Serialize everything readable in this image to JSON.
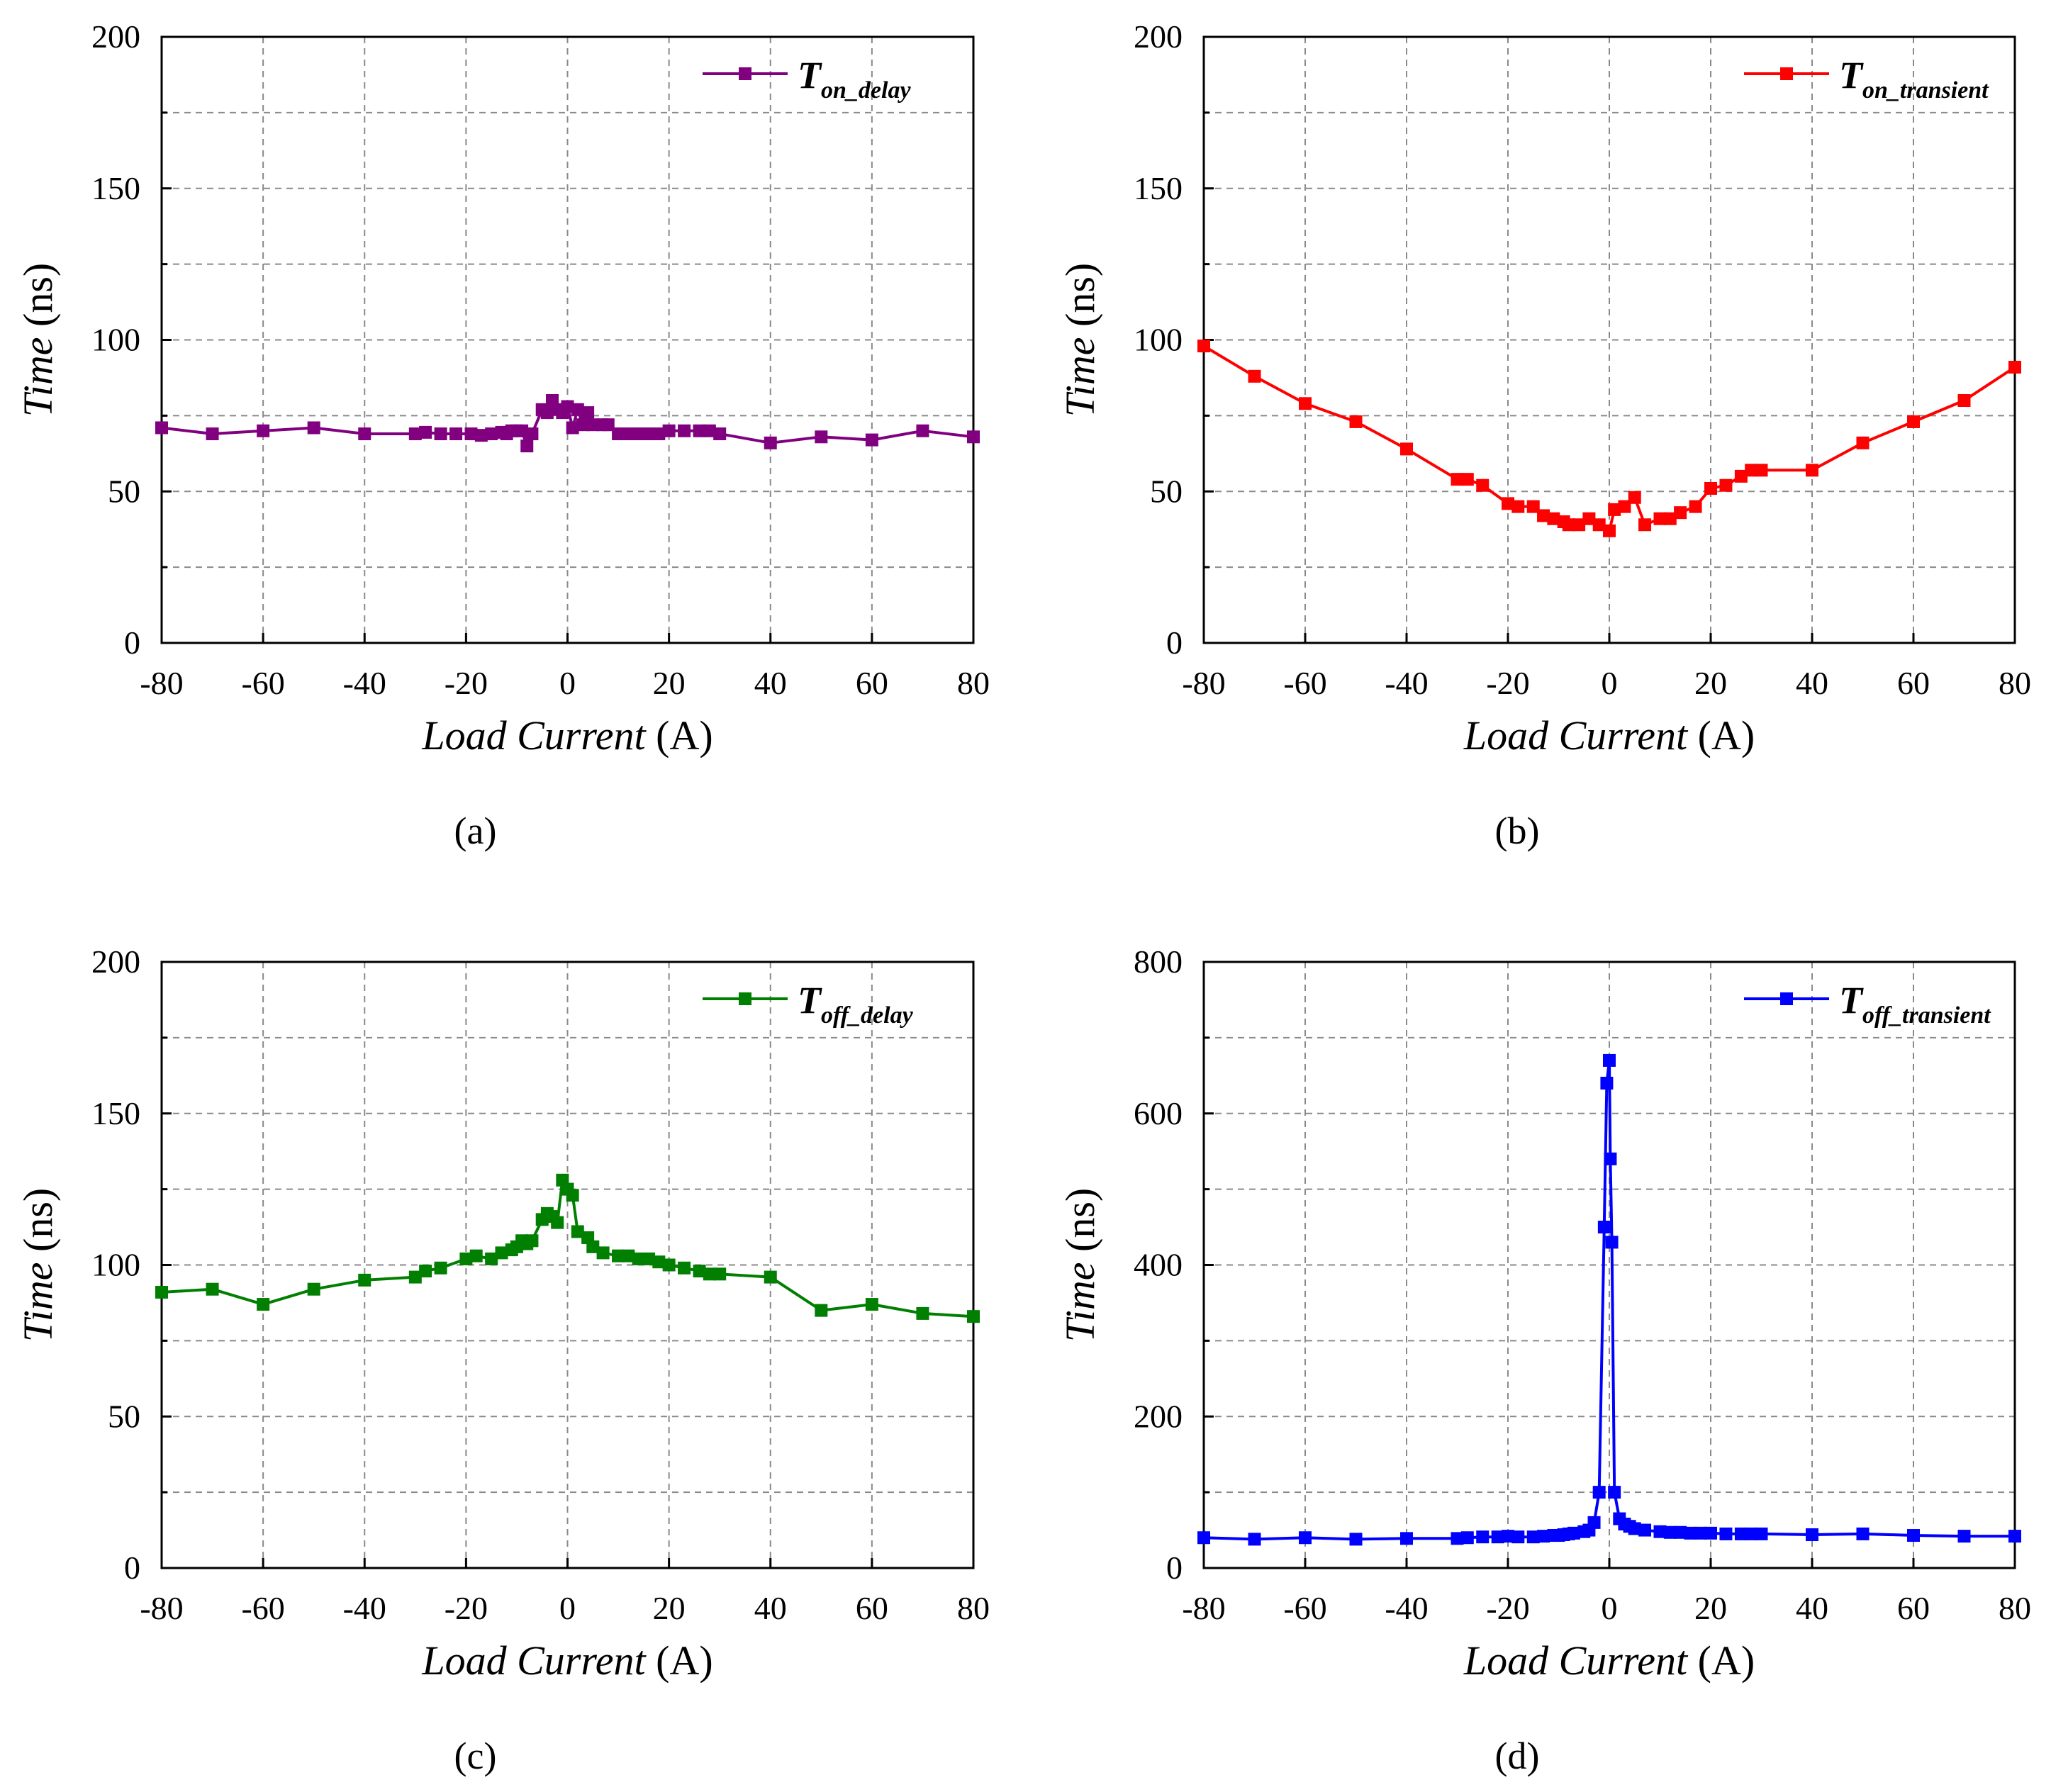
{
  "chart_data": [
    {
      "id": "a",
      "type": "line",
      "panel_label": "(a)",
      "legend": {
        "main": "T",
        "sub": "on_delay"
      },
      "color": "#800080",
      "xlabel": {
        "italic": "Load Current",
        "unit": " (A)"
      },
      "ylabel": {
        "italic": "Time",
        "unit": " (ns)"
      },
      "xlim": [
        -80,
        80
      ],
      "ylim": [
        0,
        200
      ],
      "xticks": [
        -80,
        -60,
        -40,
        -20,
        0,
        20,
        40,
        60,
        80
      ],
      "yticks": [
        0,
        50,
        100,
        150,
        200
      ],
      "legend_position": "top-right",
      "grid": true,
      "series": [
        {
          "name": "T_on_delay",
          "x": [
            -80,
            -70,
            -60,
            -50,
            -40,
            -30,
            -28,
            -25,
            -22,
            -19,
            -17,
            -15,
            -13,
            -12,
            -11,
            -10,
            -9,
            -8,
            -7,
            -5,
            -4,
            -3,
            -2,
            -1,
            0,
            1,
            2,
            3,
            4,
            5,
            7,
            8,
            10,
            12,
            14,
            16,
            18,
            20,
            23,
            26,
            28,
            30,
            40,
            50,
            60,
            70,
            80
          ],
          "y": [
            71,
            69,
            70,
            71,
            69,
            69,
            69.5,
            69,
            69,
            69,
            68.5,
            69,
            69.5,
            69,
            70,
            70,
            70,
            65,
            69,
            77,
            76,
            80,
            77,
            76,
            78,
            71,
            77,
            72,
            76,
            72,
            72,
            72,
            69,
            69,
            69,
            69,
            69,
            70,
            70,
            70,
            70,
            69,
            66,
            68,
            67,
            70,
            68
          ]
        }
      ]
    },
    {
      "id": "b",
      "type": "line",
      "panel_label": "(b)",
      "legend": {
        "main": "T",
        "sub": "on_transient"
      },
      "color": "#ff0000",
      "xlabel": {
        "italic": "Load Current",
        "unit": " (A)"
      },
      "ylabel": {
        "italic": "Time",
        "unit": " (ns)"
      },
      "xlim": [
        -80,
        80
      ],
      "ylim": [
        0,
        200
      ],
      "xticks": [
        -80,
        -60,
        -40,
        -20,
        0,
        20,
        40,
        60,
        80
      ],
      "yticks": [
        0,
        50,
        100,
        150,
        200
      ],
      "legend_position": "top-right",
      "grid": true,
      "series": [
        {
          "name": "T_on_transient",
          "x": [
            -80,
            -70,
            -60,
            -50,
            -40,
            -30,
            -28,
            -25,
            -20,
            -18,
            -15,
            -13,
            -11,
            -9,
            -8,
            -6,
            -4,
            -2,
            0,
            1,
            3,
            5,
            7,
            10,
            12,
            14,
            17,
            20,
            23,
            26,
            28,
            30,
            40,
            50,
            60,
            70,
            80
          ],
          "y": [
            98,
            88,
            79,
            73,
            64,
            54,
            54,
            52,
            46,
            45,
            45,
            42,
            41,
            40,
            39,
            39,
            41,
            39,
            37,
            44,
            45,
            48,
            39,
            41,
            41,
            43,
            45,
            51,
            52,
            55,
            57,
            57,
            57,
            66,
            73,
            80,
            91
          ]
        }
      ]
    },
    {
      "id": "c",
      "type": "line",
      "panel_label": "(c)",
      "legend": {
        "main": "T",
        "sub": "off_delay"
      },
      "color": "#007f00",
      "xlabel": {
        "italic": "Load Current",
        "unit": " (A)"
      },
      "ylabel": {
        "italic": "Time",
        "unit": " (ns)"
      },
      "xlim": [
        -80,
        80
      ],
      "ylim": [
        0,
        200
      ],
      "xticks": [
        -80,
        -60,
        -40,
        -20,
        0,
        20,
        40,
        60,
        80
      ],
      "yticks": [
        0,
        50,
        100,
        150,
        200
      ],
      "legend_position": "top-right",
      "grid": true,
      "series": [
        {
          "name": "T_off_delay",
          "x": [
            -80,
            -70,
            -60,
            -50,
            -40,
            -30,
            -28,
            -25,
            -20,
            -18,
            -15,
            -13,
            -11,
            -10,
            -9,
            -8,
            -7,
            -5,
            -4,
            -3,
            -2,
            -1,
            0,
            1,
            2,
            4,
            5,
            7,
            10,
            12,
            14,
            16,
            18,
            20,
            23,
            26,
            28,
            30,
            40,
            50,
            60,
            70,
            80
          ],
          "y": [
            91,
            92,
            87,
            92,
            95,
            96,
            98,
            99,
            102,
            103,
            102,
            104,
            105,
            106,
            108,
            107,
            108,
            115,
            117,
            116,
            114,
            128,
            125,
            123,
            111,
            109,
            106,
            104,
            103,
            103,
            102,
            102,
            101,
            100,
            99,
            98,
            97,
            97,
            96,
            85,
            87,
            84,
            83
          ]
        }
      ]
    },
    {
      "id": "d",
      "type": "line",
      "panel_label": "(d)",
      "legend": {
        "main": "T",
        "sub": "off_transient"
      },
      "color": "#0000ff",
      "xlabel": {
        "italic": "Load Current",
        "unit": " (A)"
      },
      "ylabel": {
        "italic": "Time",
        "unit": " (ns)"
      },
      "xlim": [
        -80,
        80
      ],
      "ylim": [
        0,
        800
      ],
      "xticks": [
        -80,
        -60,
        -40,
        -20,
        0,
        20,
        40,
        60,
        80
      ],
      "yticks": [
        0,
        200,
        400,
        600,
        800
      ],
      "legend_position": "top-right",
      "grid": true,
      "series": [
        {
          "name": "T_off_transient",
          "x": [
            -80,
            -70,
            -60,
            -50,
            -40,
            -30,
            -28,
            -25,
            -22,
            -20,
            -18,
            -15,
            -13,
            -11,
            -10,
            -9,
            -8,
            -7,
            -5,
            -4,
            -3,
            -2,
            -1,
            -0.5,
            0,
            0.2,
            0.5,
            1,
            2,
            3,
            4,
            5,
            7,
            10,
            12,
            14,
            16,
            18,
            20,
            23,
            26,
            28,
            30,
            40,
            50,
            60,
            70,
            80
          ],
          "y": [
            40,
            38,
            40,
            38,
            39,
            39,
            40,
            41,
            41,
            42,
            41,
            41,
            42,
            43,
            43,
            44,
            45,
            46,
            48,
            50,
            60,
            100,
            450,
            640,
            670,
            540,
            430,
            100,
            65,
            58,
            55,
            52,
            50,
            48,
            47,
            47,
            46,
            46,
            46,
            45,
            45,
            45,
            45,
            44,
            45,
            43,
            42,
            42
          ]
        }
      ]
    }
  ]
}
